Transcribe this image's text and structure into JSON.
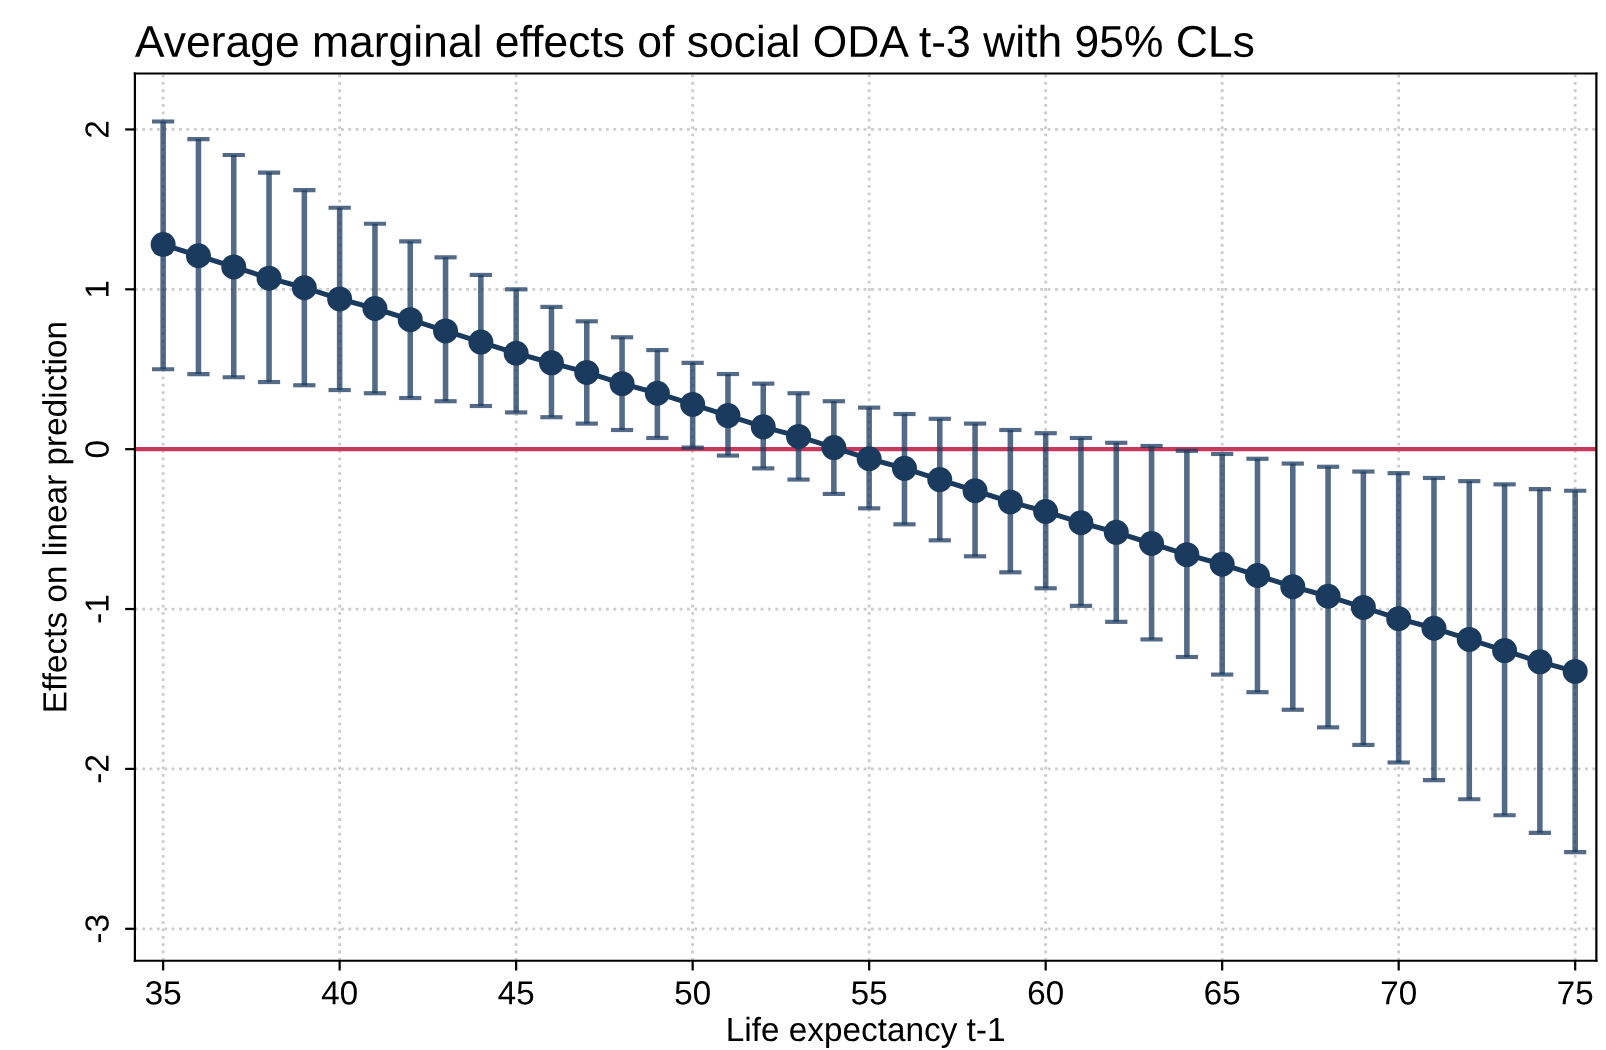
{
  "chart_data": {
    "type": "line",
    "title": "Average marginal effects of social ODA t-3 with 95% CLs",
    "xlabel": "Life expectancy t-1",
    "ylabel": "Effects on linear prediction",
    "x": [
      35,
      36,
      37,
      38,
      39,
      40,
      41,
      42,
      43,
      44,
      45,
      46,
      47,
      48,
      49,
      50,
      51,
      52,
      53,
      54,
      55,
      56,
      57,
      58,
      59,
      60,
      61,
      62,
      63,
      64,
      65,
      66,
      67,
      68,
      69,
      70,
      71,
      72,
      73,
      74,
      75
    ],
    "series": [
      {
        "color": "#1a3a5e",
        "values": [
          1.28,
          1.21,
          1.14,
          1.07,
          1.01,
          0.94,
          0.88,
          0.81,
          0.74,
          0.67,
          0.6,
          0.54,
          0.48,
          0.41,
          0.35,
          0.28,
          0.21,
          0.14,
          0.08,
          0.01,
          -0.06,
          -0.12,
          -0.19,
          -0.26,
          -0.33,
          -0.39,
          -0.46,
          -0.52,
          -0.59,
          -0.66,
          -0.72,
          -0.79,
          -0.86,
          -0.92,
          -0.99,
          -1.06,
          -1.12,
          -1.19,
          -1.26,
          -1.33,
          -1.39
        ],
        "errors": [
          [
            0.5,
            2.05
          ],
          [
            0.47,
            1.94
          ],
          [
            0.45,
            1.84
          ],
          [
            0.42,
            1.73
          ],
          [
            0.4,
            1.62
          ],
          [
            0.37,
            1.51
          ],
          [
            0.35,
            1.41
          ],
          [
            0.32,
            1.3
          ],
          [
            0.3,
            1.2
          ],
          [
            0.27,
            1.09
          ],
          [
            0.23,
            1.0
          ],
          [
            0.2,
            0.89
          ],
          [
            0.16,
            0.8
          ],
          [
            0.12,
            0.7
          ],
          [
            0.07,
            0.62
          ],
          [
            0.01,
            0.54
          ],
          [
            -0.04,
            0.47
          ],
          [
            -0.12,
            0.41
          ],
          [
            -0.19,
            0.35
          ],
          [
            -0.28,
            0.3
          ],
          [
            -0.37,
            0.26
          ],
          [
            -0.47,
            0.22
          ],
          [
            -0.57,
            0.19
          ],
          [
            -0.67,
            0.16
          ],
          [
            -0.77,
            0.12
          ],
          [
            -0.87,
            0.1
          ],
          [
            -0.98,
            0.07
          ],
          [
            -1.08,
            0.04
          ],
          [
            -1.19,
            0.02
          ],
          [
            -1.3,
            -0.01
          ],
          [
            -1.41,
            -0.03
          ],
          [
            -1.52,
            -0.06
          ],
          [
            -1.63,
            -0.09
          ],
          [
            -1.74,
            -0.11
          ],
          [
            -1.85,
            -0.14
          ],
          [
            -1.96,
            -0.15
          ],
          [
            -2.07,
            -0.18
          ],
          [
            -2.19,
            -0.2
          ],
          [
            -2.29,
            -0.22
          ],
          [
            -2.4,
            -0.25
          ],
          [
            -2.52,
            -0.26
          ]
        ]
      }
    ],
    "ref_lines": [
      {
        "axis": "y",
        "value": 0,
        "color": "#c8385a",
        "line_style": "solid"
      }
    ],
    "xlim": [
      34.2,
      75.6
    ],
    "ylim": [
      -3.2,
      2.35
    ],
    "xticks": [
      35,
      40,
      45,
      50,
      55,
      60,
      65,
      70,
      75
    ],
    "yticks": [
      -3,
      -2,
      -1,
      0,
      1,
      2
    ],
    "grid": true,
    "marker": "circle",
    "line_style": "solid"
  }
}
